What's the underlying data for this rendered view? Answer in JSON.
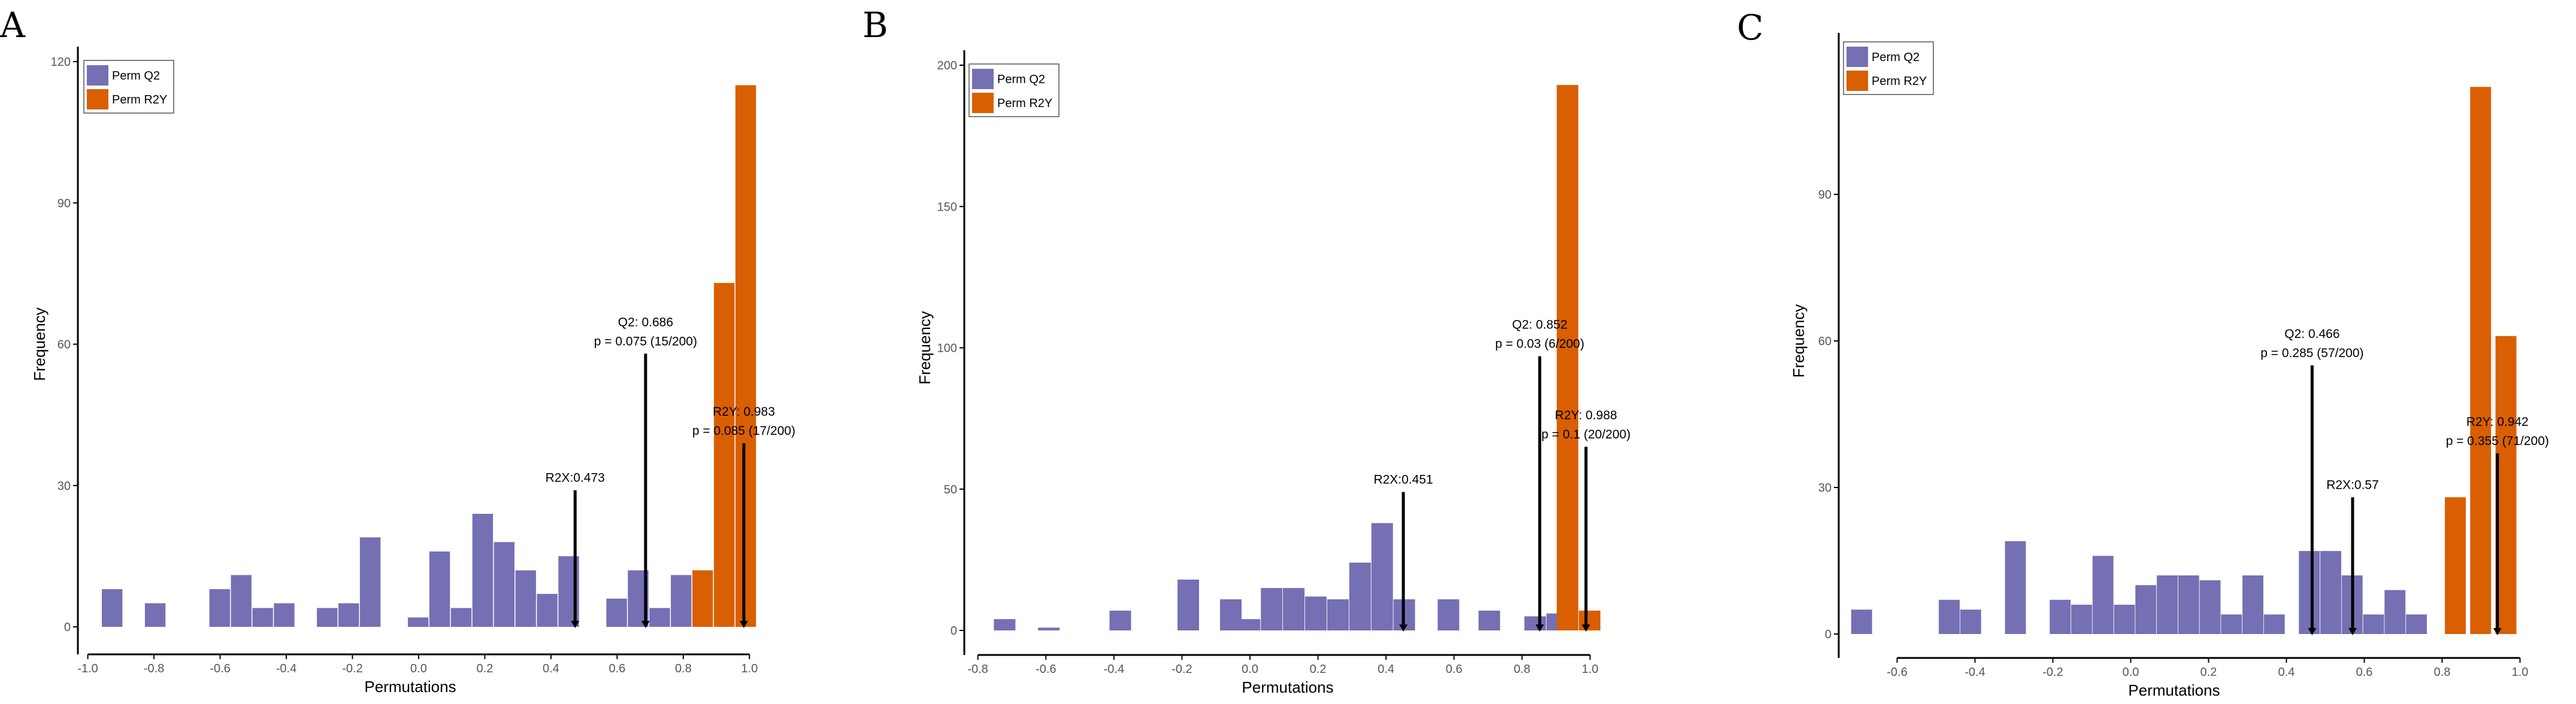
{
  "colors": {
    "q2": "#7570b3",
    "r2y": "#d95f02",
    "axis": "#000000",
    "bg": "#ffffff"
  },
  "chart_data": [
    {
      "type": "bar",
      "panel_label": "A",
      "xlabel": "Permutations",
      "ylabel": "Frequency",
      "xlim": [
        -1.03,
        1.07
      ],
      "ylim": [
        0,
        120
      ],
      "x_ticks": [
        -1.0,
        -0.8,
        -0.6,
        -0.4,
        -0.2,
        0.0,
        0.2,
        0.4,
        0.6,
        0.8,
        1.0
      ],
      "x_tick_labels": [
        "-1.0",
        "-0.8",
        "-0.6",
        "-0.4",
        "-0.2",
        "0.0",
        "0.2",
        "0.4",
        "0.6",
        "0.8",
        "1.0"
      ],
      "y_ticks": [
        0,
        30,
        60,
        90,
        120
      ],
      "y_tick_labels": [
        "0",
        "30",
        "60",
        "90",
        "120"
      ],
      "legend": {
        "position": "top-left",
        "items": [
          {
            "label": "Perm Q2",
            "series": "q2"
          },
          {
            "label": "Perm R2Y",
            "series": "r2y"
          }
        ]
      },
      "bin_width": 0.065,
      "series": [
        {
          "name": "Perm Q2",
          "color_key": "q2",
          "bins": [
            [
              -0.925,
              8
            ],
            [
              -0.795,
              5
            ],
            [
              -0.6,
              8
            ],
            [
              -0.535,
              11
            ],
            [
              -0.47,
              4
            ],
            [
              -0.405,
              5
            ],
            [
              -0.275,
              4
            ],
            [
              -0.21,
              5
            ],
            [
              -0.145,
              19
            ],
            [
              0.0,
              2
            ],
            [
              0.065,
              16
            ],
            [
              0.13,
              4
            ],
            [
              0.195,
              24
            ],
            [
              0.26,
              18
            ],
            [
              0.325,
              12
            ],
            [
              0.39,
              7
            ],
            [
              0.455,
              15
            ],
            [
              0.6,
              6
            ],
            [
              0.665,
              12
            ],
            [
              0.73,
              4
            ],
            [
              0.795,
              11
            ]
          ]
        },
        {
          "name": "Perm R2Y",
          "color_key": "r2y",
          "bins": [
            [
              0.86,
              12
            ],
            [
              0.925,
              73
            ],
            [
              0.99,
              115
            ]
          ]
        }
      ],
      "annotations": [
        {
          "x": 0.473,
          "y_top": 29,
          "lines": [
            "R2X:0.473"
          ]
        },
        {
          "x": 0.686,
          "y_top": 58,
          "lines": [
            "Q2: 0.686",
            "p = 0.075 (15/200)"
          ]
        },
        {
          "x": 0.983,
          "y_top": 39,
          "lines": [
            "R2Y: 0.983",
            "p = 0.085 (17/200)"
          ]
        }
      ]
    },
    {
      "type": "bar",
      "panel_label": "B",
      "xlabel": "Permutations",
      "ylabel": "Frequency",
      "xlim": [
        -0.84,
        1.15
      ],
      "ylim": [
        0,
        200
      ],
      "x_ticks": [
        -0.8,
        -0.6,
        -0.4,
        -0.2,
        0.0,
        0.2,
        0.4,
        0.6,
        0.8,
        1.0
      ],
      "x_tick_labels": [
        "-0.8",
        "-0.6",
        "-0.4",
        "-0.2",
        "0.0",
        "0.2",
        "0.4",
        "0.6",
        "0.8",
        "1.0"
      ],
      "y_ticks": [
        0,
        50,
        100,
        150,
        200
      ],
      "y_tick_labels": [
        "0",
        "50",
        "100",
        "150",
        "200"
      ],
      "legend": {
        "position": "top-left",
        "items": [
          {
            "label": "Perm Q2",
            "series": "q2"
          },
          {
            "label": "Perm R2Y",
            "series": "r2y"
          }
        ]
      },
      "bin_width": 0.066,
      "series": [
        {
          "name": "Perm Q2",
          "color_key": "q2",
          "bins": [
            [
              -0.72,
              4
            ],
            [
              -0.59,
              1
            ],
            [
              -0.38,
              7
            ],
            [
              -0.18,
              18
            ],
            [
              -0.055,
              11
            ],
            [
              0.0,
              4
            ],
            [
              0.065,
              15
            ],
            [
              0.13,
              15
            ],
            [
              0.195,
              12
            ],
            [
              0.26,
              11
            ],
            [
              0.325,
              24
            ],
            [
              0.39,
              38
            ],
            [
              0.455,
              11
            ],
            [
              0.585,
              11
            ],
            [
              0.705,
              7
            ],
            [
              0.84,
              5
            ],
            [
              0.905,
              6
            ]
          ]
        },
        {
          "name": "Perm R2Y",
          "color_key": "r2y",
          "bins": [
            [
              0.935,
              193
            ],
            [
              1.0,
              7
            ]
          ]
        }
      ],
      "annotations": [
        {
          "x": 0.451,
          "y_top": 49,
          "lines": [
            "R2X:0.451"
          ]
        },
        {
          "x": 0.852,
          "y_top": 97,
          "lines": [
            "Q2: 0.852",
            "p = 0.03 (6/200)"
          ]
        },
        {
          "x": 0.988,
          "y_top": 65,
          "lines": [
            "R2Y: 0.988",
            "p = 0.1 (20/200)"
          ]
        }
      ]
    },
    {
      "type": "bar",
      "panel_label": "C",
      "xlabel": "Permutations",
      "ylabel": "Frequency",
      "xlim": [
        -0.75,
        1.05
      ],
      "ylim": [
        0,
        120
      ],
      "x_ticks": [
        -0.6,
        -0.4,
        -0.2,
        0.0,
        0.2,
        0.4,
        0.6,
        0.8,
        1.0
      ],
      "x_tick_labels": [
        "-0.6",
        "-0.4",
        "-0.2",
        "0.0",
        "0.2",
        "0.4",
        "0.6",
        "0.8",
        "1.0"
      ],
      "y_ticks": [
        0,
        30,
        60,
        90
      ],
      "y_tick_labels": [
        "0",
        "30",
        "60",
        "90"
      ],
      "legend": {
        "position": "top-left",
        "items": [
          {
            "label": "Perm Q2",
            "series": "q2"
          },
          {
            "label": "Perm R2Y",
            "series": "r2y"
          }
        ]
      },
      "bin_width": 0.056,
      "series": [
        {
          "name": "Perm Q2",
          "color_key": "q2",
          "bins": [
            [
              -0.69,
              5
            ],
            [
              -0.465,
              7
            ],
            [
              -0.41,
              5
            ],
            [
              -0.295,
              19
            ],
            [
              -0.18,
              7
            ],
            [
              -0.125,
              6
            ],
            [
              -0.07,
              16
            ],
            [
              -0.015,
              6
            ],
            [
              0.04,
              10
            ],
            [
              0.095,
              12
            ],
            [
              0.15,
              12
            ],
            [
              0.205,
              11
            ],
            [
              0.26,
              4
            ],
            [
              0.315,
              12
            ],
            [
              0.37,
              4
            ],
            [
              0.46,
              17
            ],
            [
              0.515,
              17
            ],
            [
              0.57,
              12
            ],
            [
              0.625,
              4
            ],
            [
              0.68,
              9
            ],
            [
              0.735,
              4
            ]
          ]
        },
        {
          "name": "Perm R2Y",
          "color_key": "r2y",
          "bins": [
            [
              0.835,
              28
            ],
            [
              0.9,
              112
            ],
            [
              0.965,
              61
            ]
          ]
        }
      ],
      "annotations": [
        {
          "x": 0.466,
          "y_top": 55,
          "lines": [
            "Q2: 0.466",
            "p = 0.285 (57/200)"
          ]
        },
        {
          "x": 0.57,
          "y_top": 28,
          "lines": [
            "R2X:0.57"
          ]
        },
        {
          "x": 0.942,
          "y_top": 37,
          "lines": [
            "R2Y: 0.942",
            "p = 0.355 (71/200)"
          ]
        }
      ]
    }
  ]
}
